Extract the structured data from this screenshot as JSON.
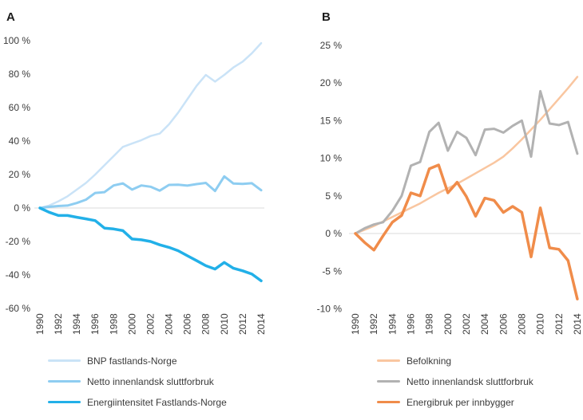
{
  "chart_data": [
    {
      "panel_label": "A",
      "type": "line",
      "grid": "zero-line-only",
      "legend_position": "below",
      "x": [
        1990,
        1991,
        1992,
        1993,
        1994,
        1995,
        1996,
        1997,
        1998,
        1999,
        2000,
        2001,
        2002,
        2003,
        2004,
        2005,
        2006,
        2007,
        2008,
        2009,
        2010,
        2011,
        2012,
        2013,
        2014
      ],
      "xlim": [
        1990,
        2014
      ],
      "ylim": [
        -60,
        100
      ],
      "y_tick_values": [
        100,
        80,
        60,
        40,
        20,
        0,
        -20,
        -40,
        -60
      ],
      "y_tick_labels": [
        "100 %",
        "80 %",
        "60 %",
        "40 %",
        "20 %",
        "0 %",
        "-20 %",
        "-40 %",
        "-60 %"
      ],
      "x_tick_years": [
        1990,
        1992,
        1994,
        1996,
        1998,
        2000,
        2002,
        2004,
        2006,
        2008,
        2010,
        2012,
        2014
      ],
      "x_tick_labels": [
        "1990",
        "1992",
        "1994",
        "1996",
        "1998",
        "2000",
        "2002",
        "2004",
        "2006",
        "2008",
        "2010",
        "2012",
        "2014"
      ],
      "series": [
        {
          "name": "BNP fastlands-Norge",
          "color": "#cae3f7",
          "width": 2.5,
          "values": [
            0,
            1.5,
            4,
            7,
            11,
            15,
            20,
            25.5,
            31,
            36.5,
            38.5,
            40.5,
            43,
            44.5,
            50,
            57,
            65,
            73,
            79.5,
            75.5,
            79.5,
            84,
            87.5,
            92.5,
            98.5
          ]
        },
        {
          "name": "Netto innenlandsk sluttforbruk",
          "color": "#8ecdf1",
          "width": 3,
          "values": [
            0,
            0.7,
            1.2,
            1.5,
            3,
            5,
            9,
            9.5,
            13.5,
            14.7,
            11,
            13.5,
            12.7,
            10.4,
            13.8,
            13.9,
            13.4,
            14.3,
            15,
            10.2,
            18.9,
            14.6,
            14.4,
            14.8,
            10.6
          ]
        },
        {
          "name": "Energiintensitet Fastlands-Norge",
          "color": "#22b0e8",
          "width": 3.5,
          "values": [
            0,
            -2.5,
            -4.5,
            -4.5,
            -5.5,
            -6.5,
            -7.5,
            -12,
            -12.5,
            -13.5,
            -18.5,
            -19,
            -20,
            -22,
            -23.5,
            -25.5,
            -28.5,
            -31.5,
            -34.5,
            -36.5,
            -32.5,
            -36,
            -37.5,
            -39.5,
            -43.5
          ]
        }
      ]
    },
    {
      "panel_label": "B",
      "type": "line",
      "grid": "zero-line-only",
      "legend_position": "below",
      "x": [
        1990,
        1991,
        1992,
        1993,
        1994,
        1995,
        1996,
        1997,
        1998,
        1999,
        2000,
        2001,
        2002,
        2003,
        2004,
        2005,
        2006,
        2007,
        2008,
        2009,
        2010,
        2011,
        2012,
        2013,
        2014
      ],
      "xlim": [
        1990,
        2014
      ],
      "ylim": [
        -10,
        25
      ],
      "y_tick_values": [
        25,
        20,
        15,
        10,
        5,
        0,
        -5,
        -10
      ],
      "y_tick_labels": [
        "25 %",
        "20 %",
        "15 %",
        "10 %",
        "5 %",
        "0 %",
        "-5 %",
        "-10 %"
      ],
      "x_tick_years": [
        1990,
        1992,
        1994,
        1996,
        1998,
        2000,
        2002,
        2004,
        2006,
        2008,
        2010,
        2012,
        2014
      ],
      "x_tick_labels": [
        "1990",
        "1992",
        "1994",
        "1996",
        "1998",
        "2000",
        "2002",
        "2004",
        "2006",
        "2008",
        "2010",
        "2012",
        "2014"
      ],
      "series": [
        {
          "name": "Befolkning",
          "color": "#f9c6a0",
          "width": 2.5,
          "values": [
            0,
            0.5,
            1,
            1.6,
            2.2,
            2.8,
            3.4,
            4,
            4.7,
            5.4,
            6,
            6.6,
            7.3,
            8,
            8.7,
            9.4,
            10.2,
            11.3,
            12.5,
            13.8,
            15.1,
            16.5,
            17.9,
            19.3,
            20.8
          ]
        },
        {
          "name": "Netto innenlandsk sluttforbruk",
          "color": "#b2b2b2",
          "width": 3,
          "values": [
            0,
            0.7,
            1.2,
            1.5,
            3,
            5,
            9,
            9.5,
            13.5,
            14.7,
            11,
            13.5,
            12.7,
            10.4,
            13.8,
            13.9,
            13.4,
            14.3,
            15,
            10.2,
            18.9,
            14.6,
            14.4,
            14.8,
            10.6
          ]
        },
        {
          "name": "Energibruk per innbygger",
          "color": "#f08c4a",
          "width": 3.5,
          "values": [
            0,
            -1.2,
            -2.2,
            -0.3,
            1.5,
            2.4,
            5.4,
            5,
            8.6,
            9.1,
            5.4,
            6.8,
            4.9,
            2.3,
            4.7,
            4.4,
            2.8,
            3.6,
            2.8,
            -3.1,
            3.4,
            -1.9,
            -2.1,
            -3.6,
            -8.7
          ]
        }
      ]
    }
  ],
  "colors": {
    "zero_gridline": "#e2e2e2",
    "tick_text": "#3b3b3b",
    "panel_letter": "#1c1c1c"
  }
}
